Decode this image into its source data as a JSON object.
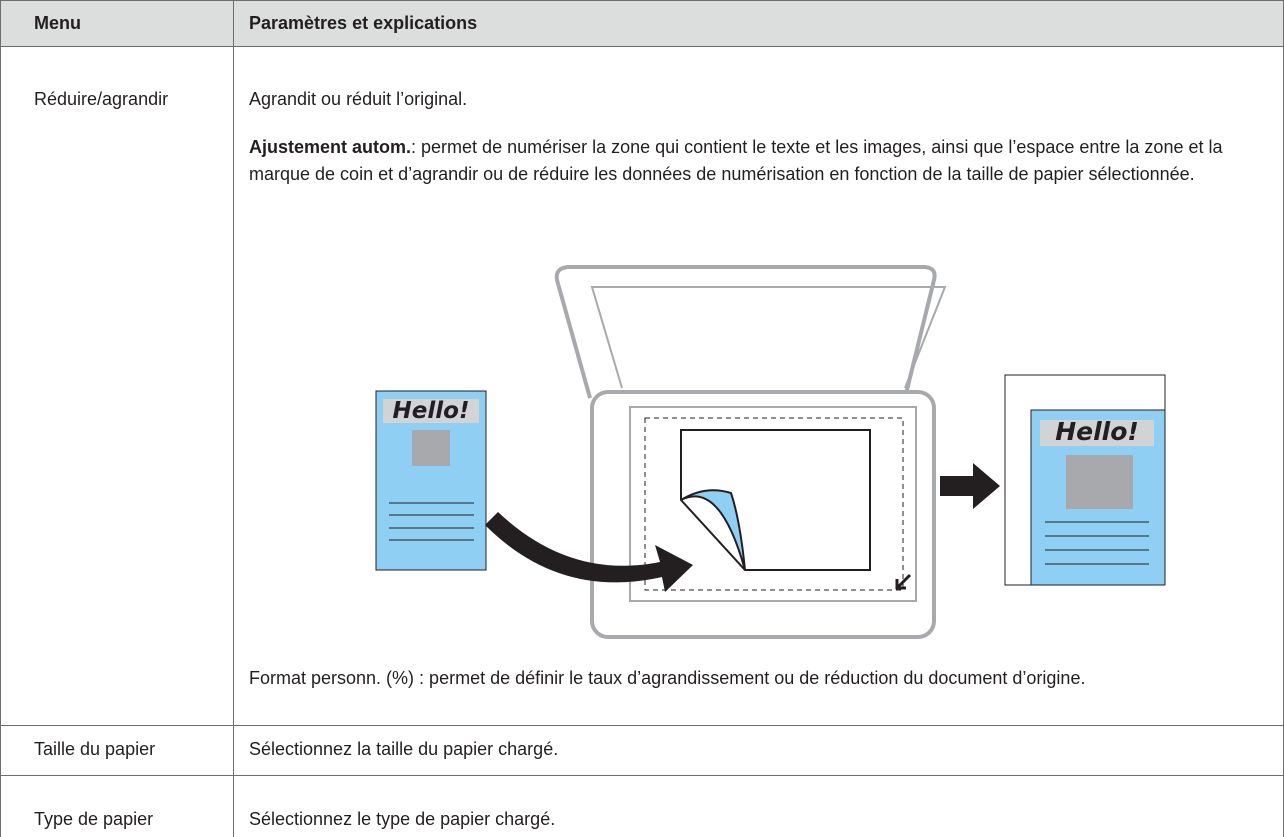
{
  "table": {
    "header": [
      "Menu",
      "Paramètres et explications"
    ],
    "rows": [
      {
        "menu": "Réduire/agrandir",
        "intro": "Agrandit ou réduit l’original.",
        "term": "Ajustement autom.",
        "term_text": ": permet de numériser la zone qui contient le texte et les images, ainsi que l’espace entre la zone et la marque de coin et d’agrandir ou de réduire les données de numérisation en fonction de la taille de papier sélectionnée.",
        "illustration": {
          "left_label": "Hello!",
          "right_label": "Hello!"
        },
        "outro": "Format personn. (%) : permet de définir le taux d’agrandissement ou de réduction du document d’origine."
      },
      {
        "menu": "Taille du papier",
        "text": "Sélectionnez la taille du papier chargé."
      },
      {
        "menu": "Type de papier",
        "text": "Sélectionnez le type de papier chargé."
      }
    ]
  }
}
